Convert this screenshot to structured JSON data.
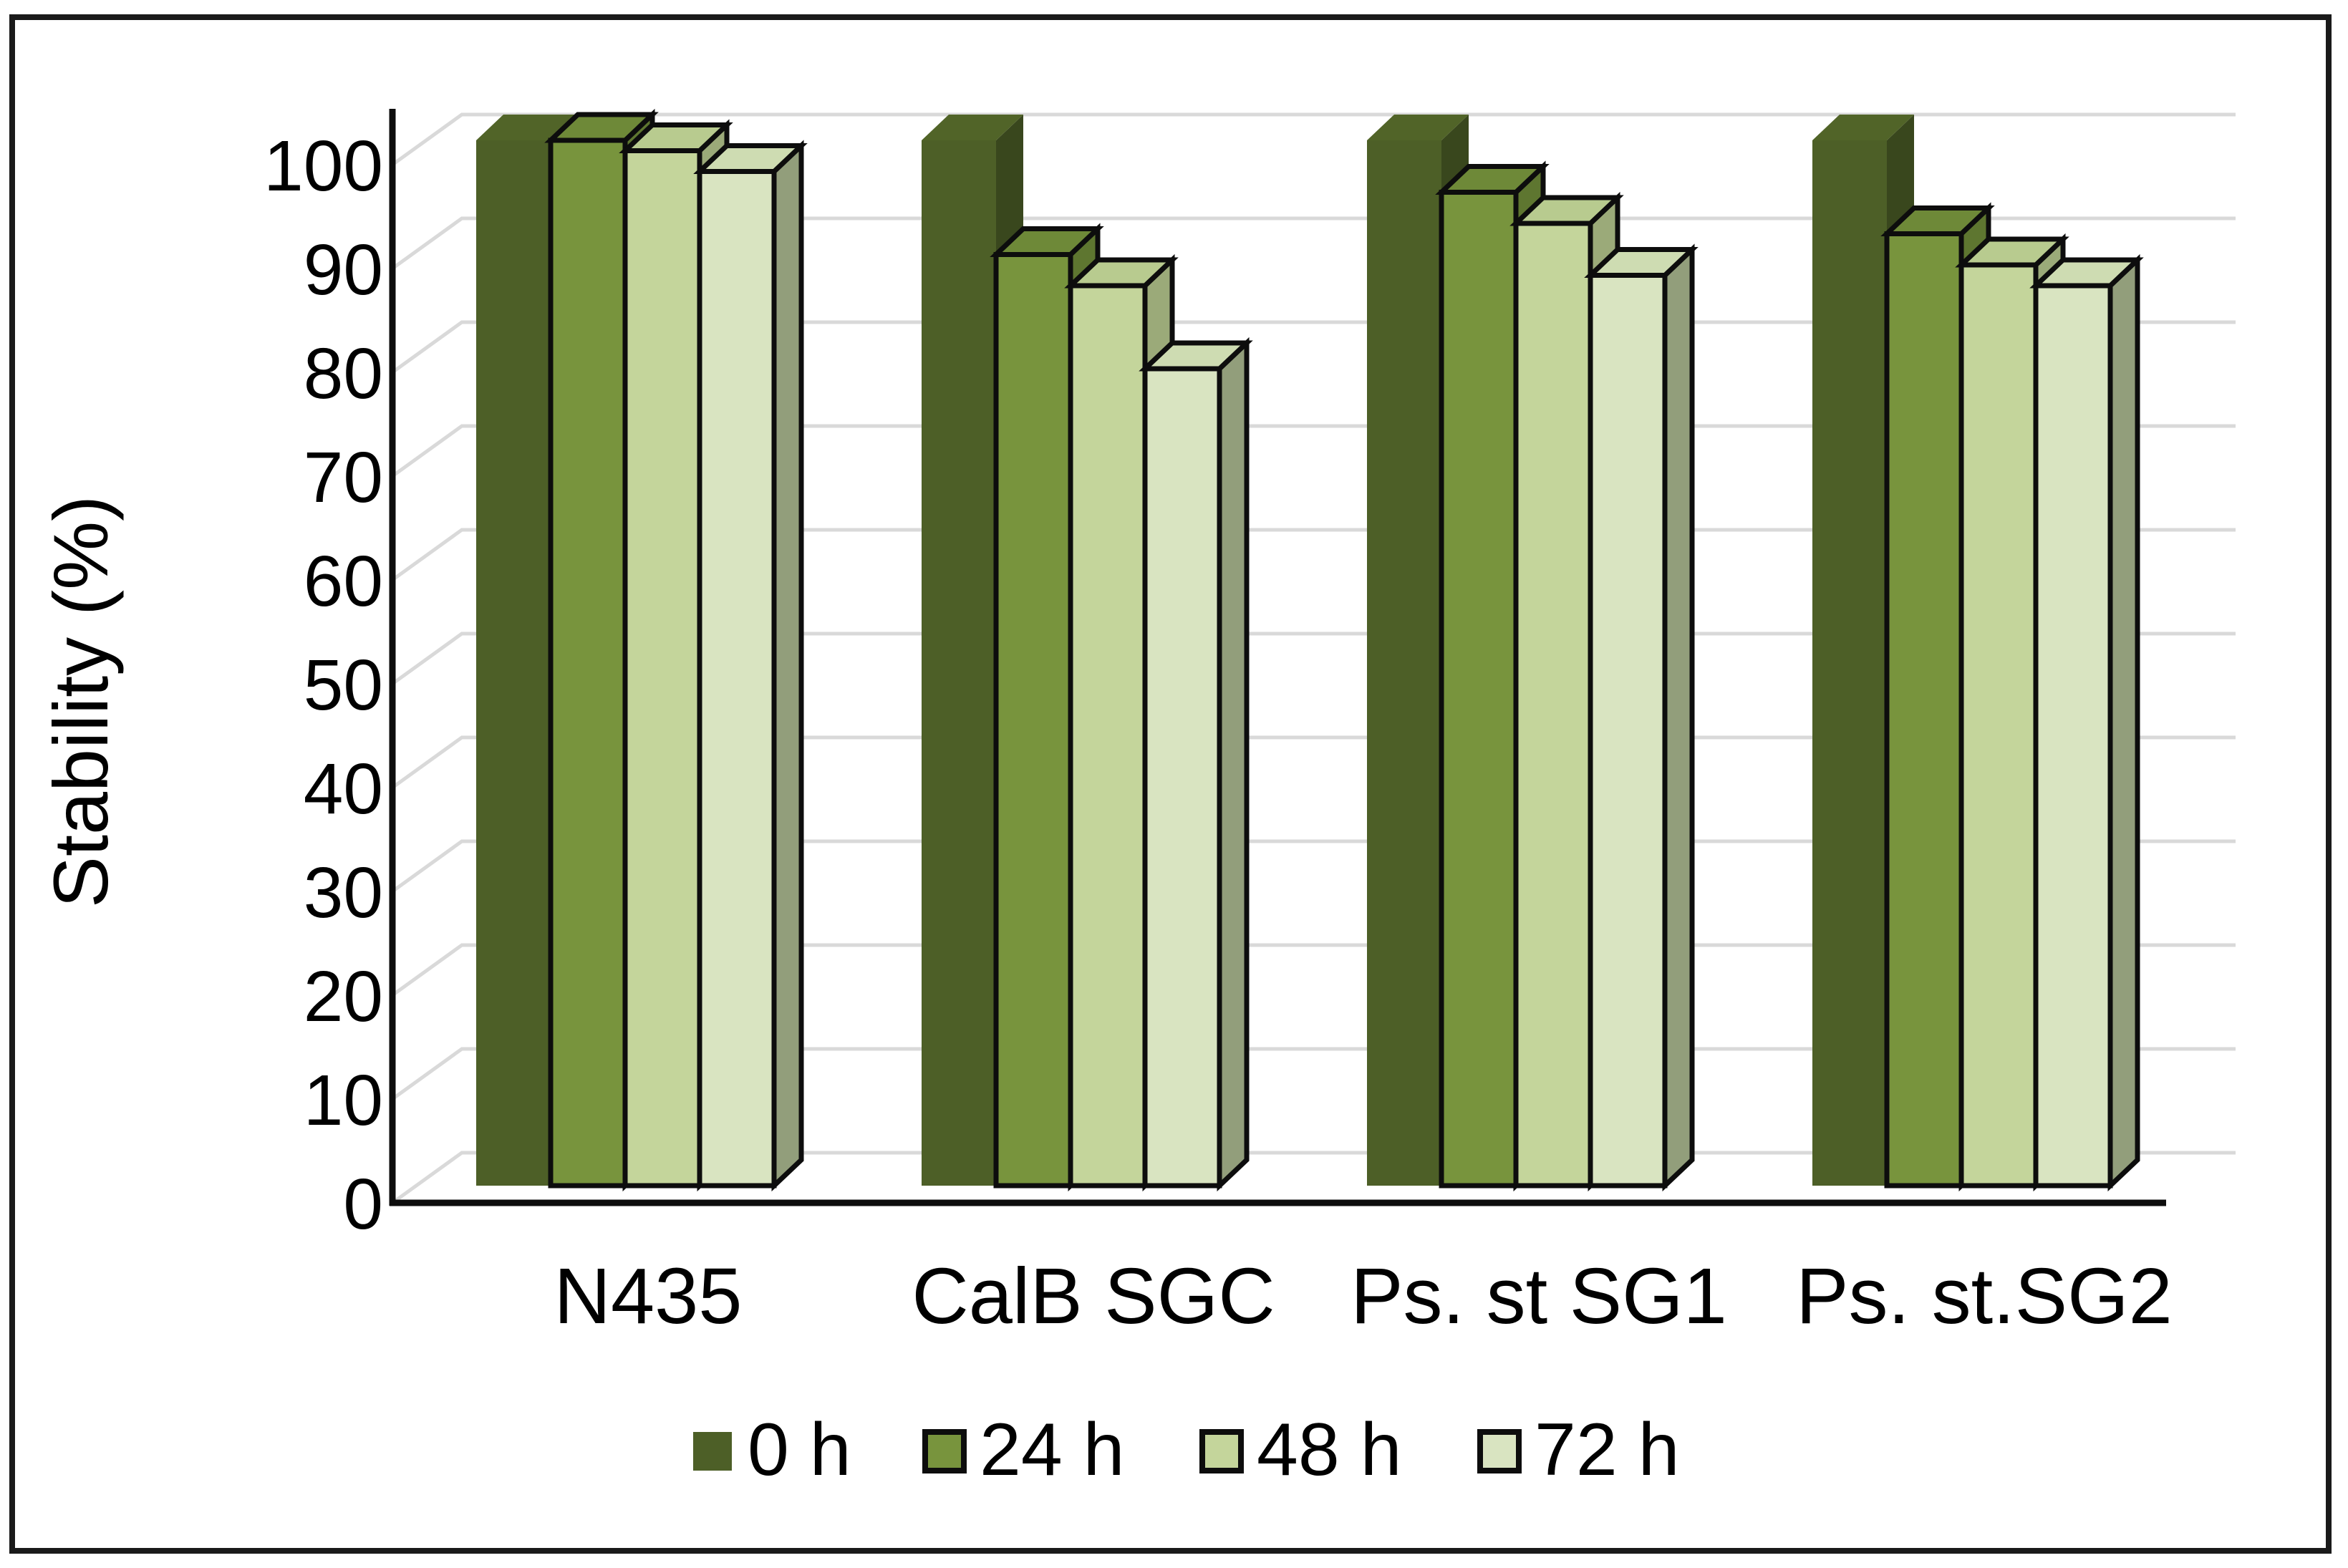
{
  "chart_data": {
    "type": "bar",
    "style": "3d-clustered-column",
    "title": "",
    "ylabel": "Stability (%)",
    "xlabel": "",
    "categories": [
      "N435",
      "CalB SGC",
      "Ps. st SG1",
      "Ps. st.SG2"
    ],
    "series": [
      {
        "name": "0 h",
        "values": [
          100,
          100,
          100,
          100
        ],
        "color": "#4D5F27",
        "top_color": "#516428",
        "side_color": "#39471D",
        "outlined": false
      },
      {
        "name": "24 h",
        "values": [
          100,
          89,
          95,
          91
        ],
        "color": "#78943D",
        "top_color": "#6E8938",
        "side_color": "#5E7630",
        "outlined": true
      },
      {
        "name": "48 h",
        "values": [
          99,
          86,
          92,
          88
        ],
        "color": "#C4D59B",
        "top_color": "#B8CB8F",
        "side_color": "#9BAA79",
        "outlined": true
      },
      {
        "name": "72 h",
        "values": [
          97,
          78,
          87,
          86
        ],
        "color": "#D9E4C1",
        "top_color": "#CEDCB2",
        "side_color": "#929E7B",
        "outlined": true
      }
    ],
    "ylim": [
      0,
      100
    ],
    "ytick_step": 10,
    "ytick_labels": [
      "0",
      "10",
      "20",
      "30",
      "40",
      "50",
      "60",
      "70",
      "80",
      "90",
      "100"
    ],
    "grid": true,
    "gridline_color": "#D9D9D9",
    "axis_color": "#0D0D0D",
    "outline_color": "#0D0D0D",
    "background_color": "#FFFFFF",
    "legend_position": "bottom",
    "legend_labels": [
      "0 h",
      "24 h",
      "48 h",
      "72 h"
    ]
  }
}
